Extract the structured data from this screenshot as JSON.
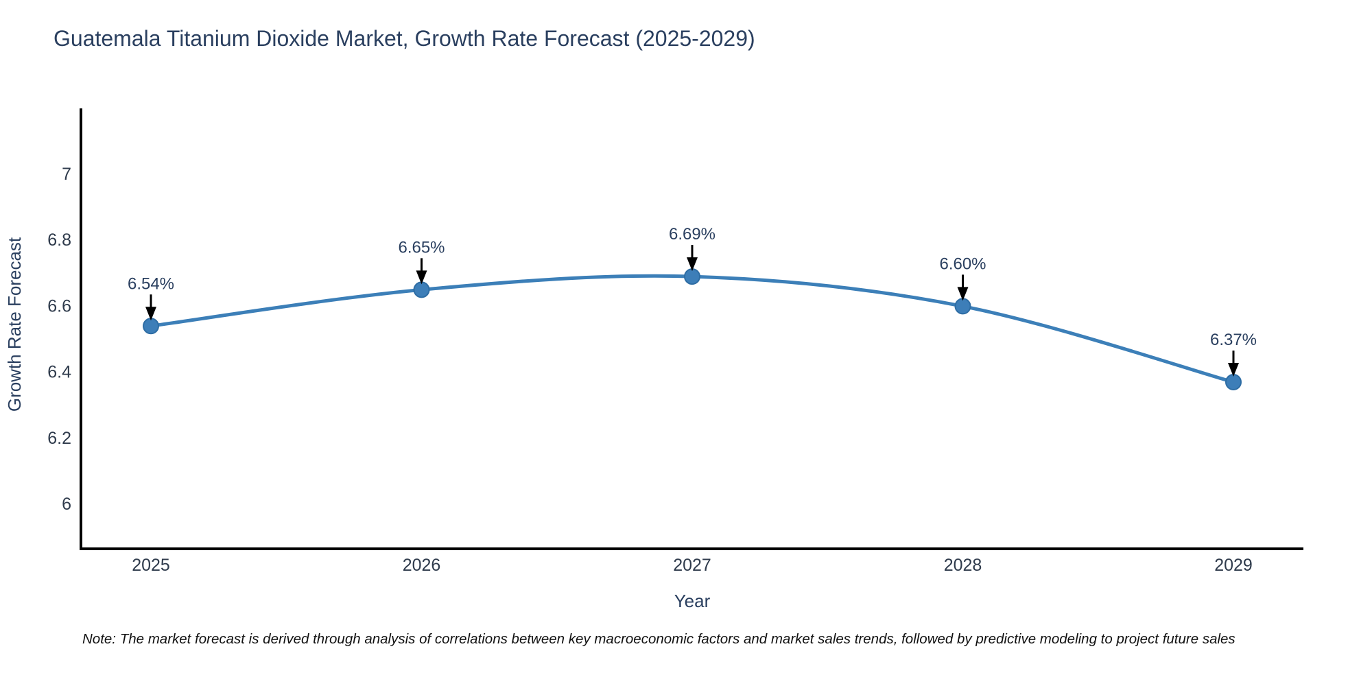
{
  "page": {
    "background": "#ffffff"
  },
  "chart_data": {
    "type": "line",
    "title": "Guatemala Titanium Dioxide Market, Growth Rate Forecast (2025-2029)",
    "xlabel": "Year",
    "ylabel": "Growth Rate Forecast",
    "categories": [
      "2025",
      "2026",
      "2027",
      "2028",
      "2029"
    ],
    "series": [
      {
        "name": "Growth Rate Forecast",
        "values": [
          6.54,
          6.65,
          6.69,
          6.6,
          6.37
        ]
      }
    ],
    "point_labels": [
      "6.54%",
      "6.65%",
      "6.69%",
      "6.60%",
      "6.37%"
    ],
    "yticks": {
      "values": [
        6,
        6.2,
        6.4,
        6.6,
        6.8,
        7
      ],
      "labels": [
        "6",
        "6.2",
        "6.4",
        "6.6",
        "6.8",
        "7"
      ]
    },
    "ylim": [
      5.865,
      7.2
    ],
    "grid": false,
    "legend": "none",
    "annotation_style": "percent labels above points with black arrows pointing down at markers",
    "colors": {
      "line": "#3c7fb8",
      "marker": "#3d7eb8",
      "marker_edge": "#2e6da4",
      "arrow": "#000000",
      "axis": "#000000",
      "title_text": "#2a3f5f",
      "tick_text": "#2f3b4c",
      "axis_label_text": "#2a3f5f"
    }
  },
  "note": "Note: The market forecast is derived through analysis of correlations between key macroeconomic factors and market sales trends, followed by predictive modeling to project future sales"
}
